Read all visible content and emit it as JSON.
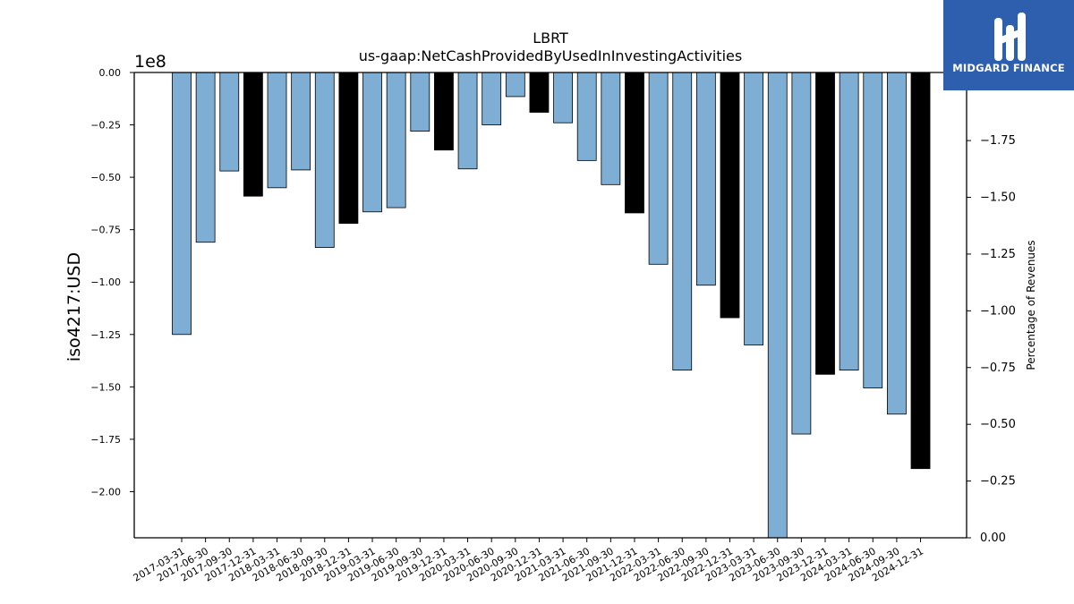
{
  "chart_data": {
    "type": "bar",
    "title": "LBRT",
    "subtitle": "us-gaap:NetCashProvidedByUsedInInvestingActivities",
    "ylabel": "iso4217:USD",
    "y_scale_label": "1e8",
    "y2label": "Percentage of Revenues",
    "ylim": [
      -2.22,
      0.0
    ],
    "y2lim": [
      0.0,
      -2.05
    ],
    "yticks": [
      "0.00",
      "−0.25",
      "−0.50",
      "−0.75",
      "−1.00",
      "−1.25",
      "−1.50",
      "−1.75",
      "−2.00"
    ],
    "y2ticks": [
      "0.00",
      "−0.25",
      "−0.50",
      "−0.75",
      "−1.00",
      "−1.25",
      "−1.50",
      "−1.75"
    ],
    "y_units_multiplier": 100000000,
    "categories": [
      "2017-03-31",
      "2017-06-30",
      "2017-09-30",
      "2017-12-31",
      "2018-03-31",
      "2018-06-30",
      "2018-09-30",
      "2018-12-31",
      "2019-03-31",
      "2019-06-30",
      "2019-09-30",
      "2019-12-31",
      "2020-03-31",
      "2020-06-30",
      "2020-09-30",
      "2020-12-31",
      "2021-03-31",
      "2021-06-30",
      "2021-09-30",
      "2021-12-31",
      "2022-03-31",
      "2022-06-30",
      "2022-09-30",
      "2022-12-31",
      "2023-03-31",
      "2023-06-30",
      "2023-09-30",
      "2023-12-31",
      "2024-03-31",
      "2024-06-30",
      "2024-09-30",
      "2024-12-31"
    ],
    "values": [
      -1.25,
      -0.81,
      -0.47,
      -0.59,
      -0.55,
      -0.465,
      -0.835,
      -0.72,
      -0.665,
      -0.645,
      -0.28,
      -0.37,
      -0.46,
      -0.25,
      -0.115,
      -0.19,
      -0.24,
      -0.42,
      -0.535,
      -0.67,
      -0.915,
      -1.42,
      -1.015,
      -1.17,
      -1.3,
      -2.25,
      -1.725,
      -1.44,
      -1.42,
      -1.505,
      -1.63,
      -1.89
    ],
    "bar_colors": [
      "#7eaed3",
      "#7eaed3",
      "#7eaed3",
      "#000000",
      "#7eaed3",
      "#7eaed3",
      "#7eaed3",
      "#000000",
      "#7eaed3",
      "#7eaed3",
      "#7eaed3",
      "#000000",
      "#7eaed3",
      "#7eaed3",
      "#7eaed3",
      "#000000",
      "#7eaed3",
      "#7eaed3",
      "#7eaed3",
      "#000000",
      "#7eaed3",
      "#7eaed3",
      "#7eaed3",
      "#000000",
      "#7eaed3",
      "#7eaed3",
      "#7eaed3",
      "#000000",
      "#7eaed3",
      "#7eaed3",
      "#7eaed3",
      "#000000"
    ],
    "grid": false
  },
  "brand": {
    "name": "MIDGARD FINANCE",
    "color": "#2d5fae"
  }
}
